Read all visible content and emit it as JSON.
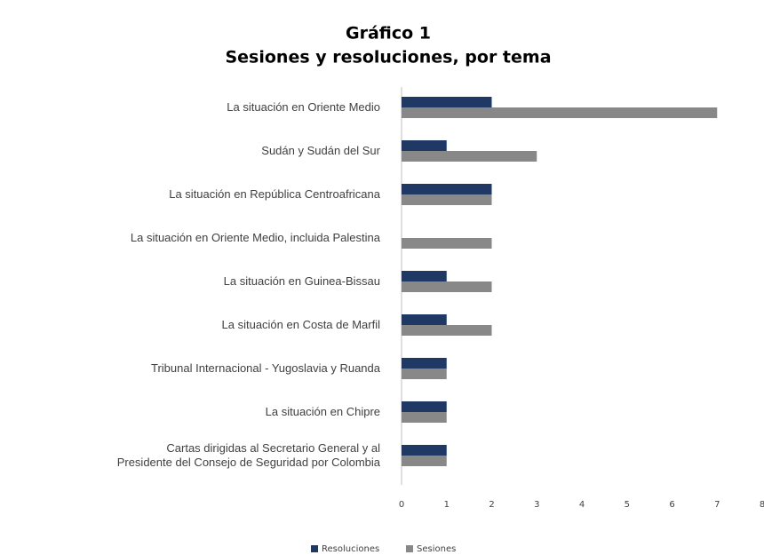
{
  "chart_data": {
    "type": "hbar",
    "title": "Gráfico 1",
    "subtitle": "Sesiones y resoluciones, por tema",
    "categories": [
      "La situación en Oriente Medio",
      "Sudán y Sudán del Sur",
      "La situación en República Centroafricana",
      "La situación en Oriente Medio, incluida Palestina",
      "La situación en Guinea-Bissau",
      "La situación en Costa de Marfil",
      "Tribunal Internacional - Yugoslavia y Ruanda",
      "La situación en Chipre",
      "Cartas dirigidas al Secretario General y al\nPresidente del Consejo de Seguridad por Colombia"
    ],
    "series": [
      {
        "name": "Resoluciones",
        "color": "#1f3864",
        "values": [
          2,
          1,
          2,
          0,
          1,
          1,
          1,
          1,
          1
        ]
      },
      {
        "name": "Sesiones",
        "color": "#888888",
        "values": [
          7,
          3,
          2,
          2,
          2,
          2,
          1,
          1,
          1
        ]
      }
    ],
    "xlim": [
      0,
      8
    ],
    "xticks": [
      0,
      1,
      2,
      3,
      4,
      5,
      6,
      7,
      8
    ],
    "legend": "bottom"
  }
}
